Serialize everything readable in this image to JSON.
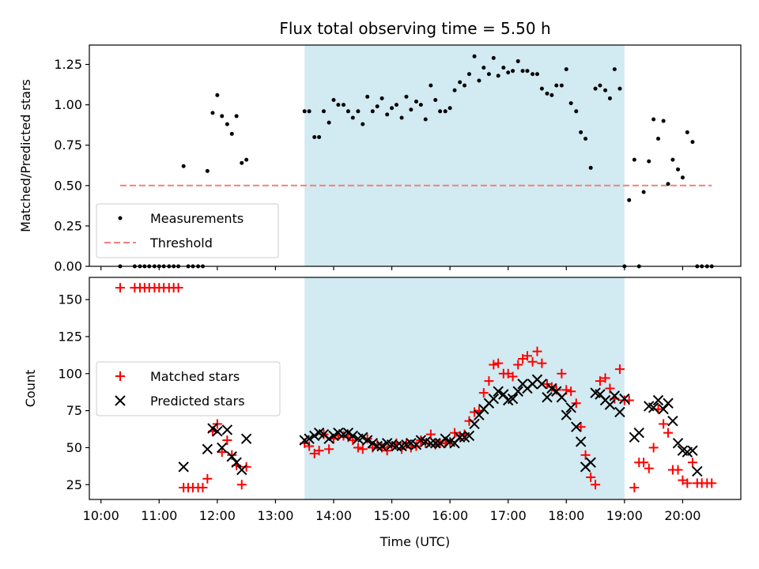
{
  "chart_data": [
    {
      "type": "scatter",
      "title": "Flux total observing time = 5.50 h",
      "xlabel": "",
      "ylabel": "Matched/Predicted stars",
      "ylim": [
        0,
        1.37
      ],
      "xlim": [
        9.8,
        21.0
      ],
      "yticks": [
        0.0,
        0.25,
        0.5,
        0.75,
        1.0,
        1.25
      ],
      "ytick_labels": [
        "0.00",
        "0.25",
        "0.50",
        "0.75",
        "1.00",
        "1.25"
      ],
      "grid": false,
      "legend_position": "lower-left",
      "shaded_region": {
        "x_start": 13.5,
        "x_end": 19.0,
        "color": "#add8e6"
      },
      "series": [
        {
          "name": "Measurements",
          "marker": "dot",
          "color": "#000000",
          "x": [
            10.33,
            10.58,
            10.67,
            10.75,
            10.83,
            10.92,
            11.0,
            11.08,
            11.17,
            11.25,
            11.33,
            11.42,
            11.5,
            11.58,
            11.67,
            11.75,
            11.83,
            11.92,
            12.0,
            12.08,
            12.17,
            12.25,
            12.33,
            12.42,
            12.5,
            13.5,
            13.58,
            13.67,
            13.75,
            13.83,
            13.92,
            14.0,
            14.08,
            14.17,
            14.25,
            14.33,
            14.42,
            14.5,
            14.58,
            14.67,
            14.75,
            14.83,
            14.92,
            15.0,
            15.08,
            15.17,
            15.25,
            15.33,
            15.42,
            15.5,
            15.58,
            15.67,
            15.75,
            15.83,
            15.92,
            16.0,
            16.08,
            16.17,
            16.25,
            16.33,
            16.42,
            16.5,
            16.58,
            16.67,
            16.75,
            16.83,
            16.92,
            17.0,
            17.08,
            17.17,
            17.25,
            17.33,
            17.42,
            17.5,
            17.58,
            17.67,
            17.75,
            17.83,
            17.92,
            18.0,
            18.08,
            18.17,
            18.25,
            18.33,
            18.42,
            18.5,
            18.58,
            18.67,
            18.75,
            18.83,
            18.92,
            19.0,
            19.08,
            19.17,
            19.25,
            19.33,
            19.42,
            19.5,
            19.58,
            19.67,
            19.75,
            19.83,
            19.92,
            20.0,
            20.08,
            20.17,
            20.25,
            20.33,
            20.42,
            20.5
          ],
          "y": [
            0.0,
            0.0,
            0.0,
            0.0,
            0.0,
            0.0,
            0.0,
            0.0,
            0.0,
            0.0,
            0.0,
            0.62,
            0.0,
            0.0,
            0.0,
            0.0,
            0.59,
            0.95,
            1.06,
            0.93,
            0.88,
            0.82,
            0.93,
            0.64,
            0.66,
            0.96,
            0.96,
            0.8,
            0.8,
            0.96,
            0.89,
            1.03,
            1.0,
            1.0,
            0.96,
            0.92,
            0.96,
            0.88,
            1.05,
            0.96,
            0.99,
            1.04,
            0.94,
            0.98,
            1.0,
            0.92,
            1.05,
            0.97,
            1.02,
            1.0,
            0.91,
            1.12,
            1.03,
            0.96,
            0.96,
            0.98,
            1.09,
            1.14,
            1.12,
            1.19,
            1.3,
            1.15,
            1.23,
            1.19,
            1.29,
            1.18,
            1.23,
            1.2,
            1.21,
            1.27,
            1.21,
            1.21,
            1.19,
            1.19,
            1.1,
            1.07,
            1.06,
            1.12,
            1.12,
            1.22,
            1.01,
            0.96,
            0.83,
            0.79,
            0.61,
            1.1,
            1.12,
            1.09,
            1.04,
            1.22,
            1.1,
            0.0,
            0.41,
            0.66,
            0.0,
            0.46,
            0.65,
            0.91,
            0.79,
            0.9,
            0.51,
            0.66,
            0.6,
            0.55,
            0.83,
            0.77,
            0.0,
            0.0,
            0.0,
            0.0
          ]
        },
        {
          "name": "Threshold",
          "marker": "dashed-line",
          "color": "#f08080",
          "x": [
            10.33,
            20.5
          ],
          "y": [
            0.5,
            0.5
          ]
        }
      ]
    },
    {
      "type": "scatter",
      "title": "",
      "xlabel": "Time (UTC)",
      "ylabel": "Count",
      "ylim": [
        15,
        165
      ],
      "xlim": [
        9.8,
        21.0
      ],
      "xticks": [
        10,
        11,
        12,
        13,
        14,
        15,
        16,
        17,
        18,
        19,
        20
      ],
      "xtick_labels": [
        "10:00",
        "11:00",
        "12:00",
        "13:00",
        "14:00",
        "15:00",
        "16:00",
        "17:00",
        "18:00",
        "19:00",
        "20:00"
      ],
      "yticks": [
        25,
        50,
        75,
        100,
        125,
        150
      ],
      "ytick_labels": [
        "25",
        "50",
        "75",
        "100",
        "125",
        "150"
      ],
      "grid": false,
      "legend_position": "center-left",
      "shaded_region": {
        "x_start": 13.5,
        "x_end": 19.0,
        "color": "#add8e6"
      },
      "series": [
        {
          "name": "Matched stars",
          "marker": "plus",
          "color": "#ff0000",
          "x": [
            10.33,
            10.58,
            10.67,
            10.75,
            10.83,
            10.92,
            11.0,
            11.08,
            11.17,
            11.25,
            11.33,
            11.42,
            11.5,
            11.58,
            11.67,
            11.75,
            11.83,
            11.92,
            12.0,
            12.08,
            12.17,
            12.25,
            12.33,
            12.42,
            12.5,
            13.5,
            13.58,
            13.67,
            13.75,
            13.83,
            13.92,
            14.0,
            14.08,
            14.17,
            14.25,
            14.33,
            14.42,
            14.5,
            14.58,
            14.67,
            14.75,
            14.83,
            14.92,
            15.0,
            15.08,
            15.17,
            15.25,
            15.33,
            15.42,
            15.5,
            15.58,
            15.67,
            15.75,
            15.83,
            15.92,
            16.0,
            16.08,
            16.17,
            16.25,
            16.33,
            16.42,
            16.5,
            16.58,
            16.67,
            16.75,
            16.83,
            16.92,
            17.0,
            17.08,
            17.17,
            17.25,
            17.33,
            17.42,
            17.5,
            17.58,
            17.67,
            17.75,
            17.83,
            17.92,
            18.0,
            18.08,
            18.17,
            18.25,
            18.33,
            18.42,
            18.5,
            18.58,
            18.67,
            18.75,
            18.83,
            18.92,
            19.0,
            19.08,
            19.17,
            19.25,
            19.33,
            19.42,
            19.5,
            19.58,
            19.67,
            19.75,
            19.83,
            19.92,
            20.0,
            20.08,
            20.17,
            20.25,
            20.33,
            20.42,
            20.5
          ],
          "y": [
            158,
            158,
            158,
            158,
            158,
            158,
            158,
            158,
            158,
            158,
            158,
            23,
            23,
            23,
            23,
            23,
            29,
            61,
            66,
            47,
            55,
            45,
            38,
            25,
            37,
            53,
            51,
            46,
            48,
            59,
            49,
            56,
            58,
            58,
            57,
            55,
            50,
            49,
            56,
            50,
            52,
            50,
            48,
            51,
            53,
            49,
            53,
            50,
            51,
            55,
            53,
            59,
            52,
            53,
            53,
            54,
            60,
            58,
            59,
            68,
            74,
            75,
            87,
            95,
            106,
            107,
            100,
            100,
            98,
            106,
            110,
            112,
            108,
            115,
            107,
            93,
            91,
            89,
            100,
            89,
            88,
            80,
            64,
            45,
            30,
            25,
            95,
            97,
            90,
            83,
            103,
            82,
            82,
            23,
            40,
            40,
            36,
            50,
            76,
            66,
            60,
            35,
            35,
            28,
            26,
            40,
            26,
            26,
            26,
            26
          ]
        },
        {
          "name": "Predicted stars",
          "marker": "x",
          "color": "#000000",
          "x": [
            11.42,
            11.83,
            11.92,
            12.0,
            12.08,
            12.17,
            12.25,
            12.33,
            12.42,
            12.5,
            13.5,
            13.58,
            13.67,
            13.75,
            13.83,
            13.92,
            14.0,
            14.08,
            14.17,
            14.25,
            14.33,
            14.42,
            14.5,
            14.58,
            14.67,
            14.75,
            14.83,
            14.92,
            15.0,
            15.08,
            15.17,
            15.25,
            15.33,
            15.42,
            15.5,
            15.58,
            15.67,
            15.75,
            15.83,
            15.92,
            16.0,
            16.08,
            16.17,
            16.25,
            16.33,
            16.42,
            16.5,
            16.58,
            16.67,
            16.75,
            16.83,
            16.92,
            17.0,
            17.08,
            17.17,
            17.25,
            17.33,
            17.42,
            17.5,
            17.58,
            17.67,
            17.75,
            17.83,
            17.92,
            18.0,
            18.08,
            18.17,
            18.25,
            18.33,
            18.42,
            18.5,
            18.58,
            18.67,
            18.75,
            18.83,
            18.92,
            19.0,
            19.17,
            19.25,
            19.42,
            19.5,
            19.58,
            19.67,
            19.75,
            19.83,
            19.92,
            20.0,
            20.08,
            20.17,
            20.25
          ],
          "y": [
            37,
            49,
            63,
            61,
            50,
            62,
            44,
            40,
            35,
            56,
            55,
            56,
            58,
            60,
            59,
            56,
            58,
            60,
            59,
            60,
            58,
            56,
            57,
            55,
            53,
            51,
            51,
            53,
            52,
            51,
            51,
            52,
            53,
            52,
            55,
            54,
            53,
            53,
            53,
            56,
            54,
            53,
            57,
            57,
            58,
            66,
            72,
            76,
            80,
            83,
            88,
            86,
            82,
            83,
            88,
            93,
            90,
            93,
            96,
            93,
            84,
            90,
            88,
            84,
            72,
            77,
            64,
            54,
            37,
            40,
            87,
            86,
            82,
            79,
            85,
            74,
            83,
            57,
            60,
            78,
            77,
            82,
            76,
            80,
            68,
            53,
            48,
            47,
            48,
            34
          ]
        }
      ]
    }
  ]
}
